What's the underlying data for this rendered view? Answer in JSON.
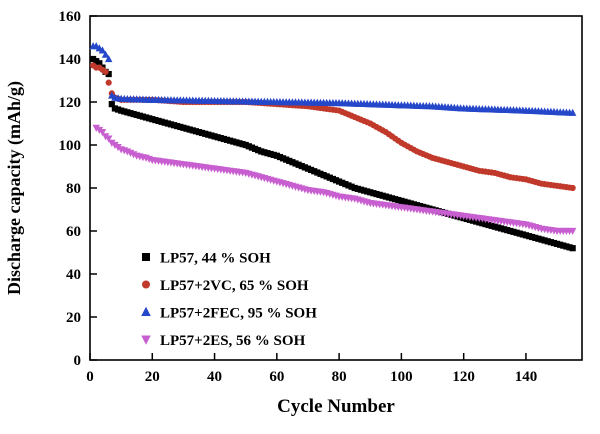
{
  "figure": {
    "background": "#ffffff"
  },
  "chart_data": {
    "type": "scatter",
    "title": "",
    "xlabel": "Cycle Number",
    "ylabel": "Discharge capacity (mAh/g)",
    "xlim": [
      0,
      158
    ],
    "ylim": [
      0,
      160
    ],
    "xticks": [
      0,
      20,
      40,
      60,
      80,
      100,
      120,
      140
    ],
    "yticks": [
      0,
      20,
      40,
      60,
      80,
      100,
      120,
      140,
      160
    ],
    "grid": false,
    "legend_position": "inside-lower-left",
    "series": [
      {
        "name": "LP57, 44 % SOH",
        "marker": "square",
        "color": "#000000",
        "points": [
          [
            1,
            140
          ],
          [
            2,
            139
          ],
          [
            3,
            138
          ],
          [
            4,
            136
          ],
          [
            5,
            134
          ],
          [
            6,
            133
          ],
          [
            7,
            119
          ],
          [
            8,
            117
          ],
          [
            10,
            116
          ],
          [
            15,
            114
          ],
          [
            20,
            112
          ],
          [
            25,
            110
          ],
          [
            30,
            108
          ],
          [
            35,
            106
          ],
          [
            40,
            104
          ],
          [
            45,
            102
          ],
          [
            50,
            100
          ],
          [
            55,
            97
          ],
          [
            60,
            95
          ],
          [
            65,
            92
          ],
          [
            70,
            89
          ],
          [
            75,
            86
          ],
          [
            80,
            83
          ],
          [
            85,
            80
          ],
          [
            90,
            78
          ],
          [
            95,
            76
          ],
          [
            100,
            74
          ],
          [
            105,
            72
          ],
          [
            110,
            70
          ],
          [
            115,
            68
          ],
          [
            120,
            66
          ],
          [
            125,
            64
          ],
          [
            130,
            62
          ],
          [
            135,
            60
          ],
          [
            140,
            58
          ],
          [
            145,
            56
          ],
          [
            150,
            54
          ],
          [
            155,
            52
          ]
        ]
      },
      {
        "name": "LP57+2VC, 65 % SOH",
        "marker": "circle",
        "color": "#c0392b",
        "points": [
          [
            1,
            137
          ],
          [
            2,
            136
          ],
          [
            3,
            136
          ],
          [
            4,
            135
          ],
          [
            5,
            134
          ],
          [
            7,
            124
          ],
          [
            8,
            122
          ],
          [
            10,
            121
          ],
          [
            15,
            121
          ],
          [
            20,
            121
          ],
          [
            30,
            120
          ],
          [
            40,
            120
          ],
          [
            50,
            120
          ],
          [
            60,
            119
          ],
          [
            70,
            118
          ],
          [
            75,
            117
          ],
          [
            80,
            116
          ],
          [
            85,
            113
          ],
          [
            90,
            110
          ],
          [
            95,
            106
          ],
          [
            100,
            101
          ],
          [
            105,
            97
          ],
          [
            110,
            94
          ],
          [
            115,
            92
          ],
          [
            120,
            90
          ],
          [
            125,
            88
          ],
          [
            130,
            87
          ],
          [
            135,
            85
          ],
          [
            140,
            84
          ],
          [
            145,
            82
          ],
          [
            150,
            81
          ],
          [
            155,
            80
          ]
        ]
      },
      {
        "name": "LP57+2FEC, 95 % SOH",
        "marker": "triangle-up",
        "color": "#2547c9",
        "points": [
          [
            1,
            146
          ],
          [
            2,
            146
          ],
          [
            3,
            145
          ],
          [
            4,
            144
          ],
          [
            5,
            142
          ],
          [
            6,
            140
          ],
          [
            7,
            123
          ],
          [
            8,
            122
          ],
          [
            10,
            121.5
          ],
          [
            20,
            121
          ],
          [
            40,
            120.5
          ],
          [
            60,
            120
          ],
          [
            80,
            119.5
          ],
          [
            90,
            119
          ],
          [
            100,
            118.5
          ],
          [
            110,
            118
          ],
          [
            120,
            117
          ],
          [
            130,
            116.5
          ],
          [
            140,
            116
          ],
          [
            150,
            115.3
          ],
          [
            155,
            115
          ]
        ]
      },
      {
        "name": "LP57+2ES, 56 % SOH",
        "marker": "triangle-down",
        "color": "#c85fd0",
        "points": [
          [
            2,
            108
          ],
          [
            3,
            107
          ],
          [
            4,
            106
          ],
          [
            5,
            104
          ],
          [
            6,
            103
          ],
          [
            7,
            101
          ],
          [
            8,
            100
          ],
          [
            10,
            98
          ],
          [
            12,
            97
          ],
          [
            15,
            95
          ],
          [
            18,
            94
          ],
          [
            20,
            93
          ],
          [
            25,
            92
          ],
          [
            30,
            91
          ],
          [
            35,
            90
          ],
          [
            40,
            89
          ],
          [
            45,
            88
          ],
          [
            50,
            87
          ],
          [
            55,
            85
          ],
          [
            60,
            83
          ],
          [
            65,
            81
          ],
          [
            70,
            79
          ],
          [
            75,
            78
          ],
          [
            80,
            76
          ],
          [
            85,
            75
          ],
          [
            90,
            73
          ],
          [
            95,
            72
          ],
          [
            100,
            71
          ],
          [
            105,
            70
          ],
          [
            110,
            69
          ],
          [
            115,
            68
          ],
          [
            120,
            67
          ],
          [
            125,
            66
          ],
          [
            130,
            65
          ],
          [
            135,
            64
          ],
          [
            140,
            63
          ],
          [
            145,
            61
          ],
          [
            150,
            60
          ],
          [
            155,
            60
          ]
        ]
      }
    ]
  }
}
